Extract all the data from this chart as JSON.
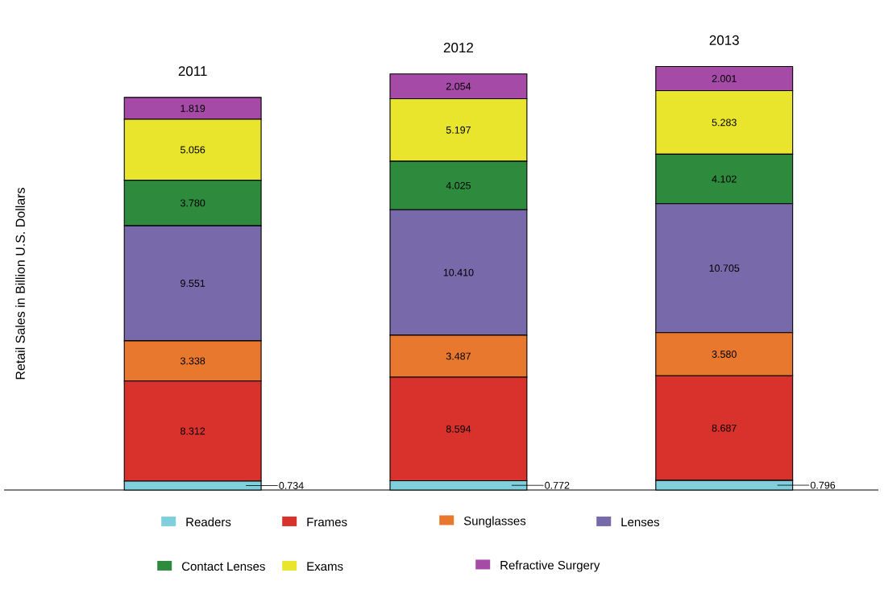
{
  "chart_data": {
    "type": "bar",
    "stacked": true,
    "ylabel": "Retail Sales in Billion U.S. Dollars",
    "categories": [
      "2011",
      "2012",
      "2013"
    ],
    "series": [
      {
        "name": "Readers",
        "color": "#7fd0dc",
        "values": [
          0.734,
          0.772,
          0.796
        ],
        "value_labels": [
          "0.734",
          "0.772",
          "0.796"
        ]
      },
      {
        "name": "Frames",
        "color": "#d9312b",
        "values": [
          8.312,
          8.594,
          8.687
        ],
        "value_labels": [
          "8.312",
          "8.594",
          "8.687"
        ]
      },
      {
        "name": "Sunglasses",
        "color": "#e8782e",
        "values": [
          3.338,
          3.487,
          3.58
        ],
        "value_labels": [
          "3.338",
          "3.487",
          "3.580"
        ]
      },
      {
        "name": "Lenses",
        "color": "#786aaa",
        "values": [
          9.551,
          10.41,
          10.705
        ],
        "value_labels": [
          "9.551",
          "10.410",
          "10.705"
        ]
      },
      {
        "name": "Contact Lenses",
        "color": "#2e8a3c",
        "values": [
          3.78,
          4.025,
          4.102
        ],
        "value_labels": [
          "3.780",
          "4.025",
          "4.102"
        ]
      },
      {
        "name": "Exams",
        "color": "#e9e52c",
        "values": [
          5.056,
          5.197,
          5.283
        ],
        "value_labels": [
          "5.056",
          "5.197",
          "5.283"
        ]
      },
      {
        "name": "Refractive Surgery",
        "color": "#a54aa6",
        "values": [
          1.819,
          2.054,
          2.001
        ],
        "value_labels": [
          "1.819",
          "2.054",
          "2.001"
        ]
      }
    ],
    "legend": "bottom"
  }
}
